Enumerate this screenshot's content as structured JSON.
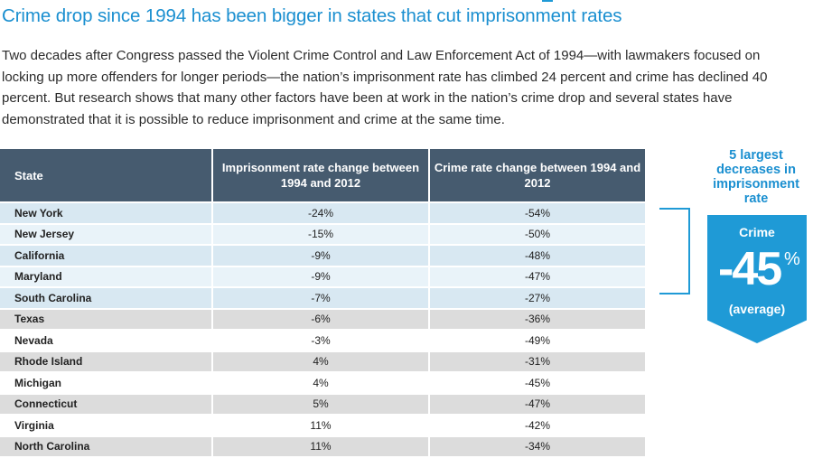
{
  "title": "Crime drop since 1994 has been bigger in states that cut imprisonment rates",
  "intro": "Two decades after Congress passed the Violent Crime Control and Law Enforcement Act of 1994—with lawmakers focused on locking up more offenders for longer periods—the nation’s imprisonment rate has climbed 24 percent and crime has declined 40 percent. But research shows that many other factors have been at work in the nation’s crime drop and several states have demonstrated that it is possible to reduce imprisonment and crime at the same time.",
  "table": {
    "headers": [
      "State",
      "Imprisonment rate change between 1994 and 2012",
      "Crime rate change between 1994 and 2012"
    ],
    "rows": [
      {
        "state": "New York",
        "imprisonment": "-24%",
        "crime": "-54%"
      },
      {
        "state": "New Jersey",
        "imprisonment": "-15%",
        "crime": "-50%"
      },
      {
        "state": "California",
        "imprisonment": "-9%",
        "crime": "-48%"
      },
      {
        "state": "Maryland",
        "imprisonment": "-9%",
        "crime": "-47%"
      },
      {
        "state": "South Carolina",
        "imprisonment": "-7%",
        "crime": "-27%"
      },
      {
        "state": "Texas",
        "imprisonment": "-6%",
        "crime": "-36%"
      },
      {
        "state": "Nevada",
        "imprisonment": "-3%",
        "crime": "-49%"
      },
      {
        "state": "Rhode Island",
        "imprisonment": "4%",
        "crime": "-31%"
      },
      {
        "state": "Michigan",
        "imprisonment": "4%",
        "crime": "-45%"
      },
      {
        "state": "Connecticut",
        "imprisonment": "5%",
        "crime": "-47%"
      },
      {
        "state": "Virginia",
        "imprisonment": "11%",
        "crime": "-42%"
      },
      {
        "state": "North Carolina",
        "imprisonment": "11%",
        "crime": "-34%"
      }
    ]
  },
  "side": {
    "label": "5 largest decreases in imprisonment rate",
    "callout_label": "Crime",
    "callout_value": "-45",
    "callout_unit": "%",
    "callout_note": "(average)"
  },
  "colors": {
    "accent": "#1f9ad6",
    "header_bg": "#465b6f",
    "highlight_dark": "#d8e8f2",
    "highlight_light": "#e9f3f9",
    "row_gray": "#dcdcdc"
  }
}
